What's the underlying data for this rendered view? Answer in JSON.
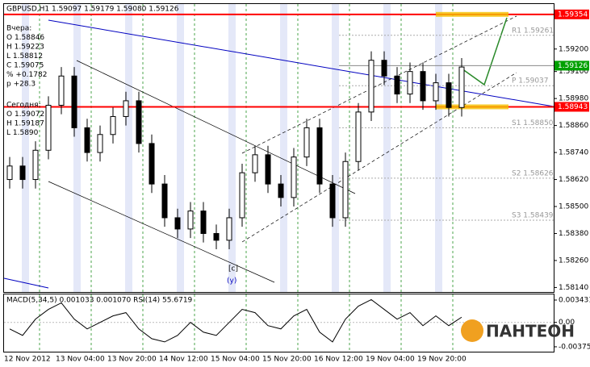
{
  "chart_data": [
    {
      "type": "candlestick",
      "title": "GBPUSD,H1  1.59097 1.59179 1.59080 1.59126",
      "ylim": [
        1.5812,
        1.594
      ],
      "yticks": [
        {
          "value": 1.592,
          "label": "1.59200"
        },
        {
          "value": 1.591,
          "label": "1.59100"
        },
        {
          "value": 1.5898,
          "label": "1.58980"
        },
        {
          "value": 1.5886,
          "label": "1.58860"
        },
        {
          "value": 1.5874,
          "label": "1.58740"
        },
        {
          "value": 1.5862,
          "label": "1.58620"
        },
        {
          "value": 1.585,
          "label": "1.58500"
        },
        {
          "value": 1.5838,
          "label": "1.58380"
        },
        {
          "value": 1.5826,
          "label": "1.58260"
        },
        {
          "value": 1.5814,
          "label": "1.58140"
        }
      ],
      "x_labels": [
        "12 Nov 2012",
        "13 Nov 04:00",
        "13 Nov 20:00",
        "14 Nov 12:00",
        "15 Nov 04:00",
        "15 Nov 20:00",
        "16 Nov 12:00",
        "19 Nov 04:00",
        "19 Nov 20:00"
      ],
      "up_color": "#ffffff",
      "down_color": "#000000",
      "open": [
        1.5862,
        1.5868,
        1.5862,
        1.5875,
        1.5895,
        1.5908,
        1.5885,
        1.5874,
        1.5882,
        1.589,
        1.5897,
        1.5878,
        1.586,
        1.5845,
        1.584,
        1.5848,
        1.5838,
        1.5835,
        1.5845,
        1.5865,
        1.5873,
        1.586,
        1.5854,
        1.5872,
        1.5885,
        1.586,
        1.5845,
        1.587,
        1.5892,
        1.5915,
        1.5908,
        1.59,
        1.591,
        1.5897,
        1.5905,
        1.5894
      ],
      "high": [
        1.5872,
        1.5872,
        1.5879,
        1.5899,
        1.5912,
        1.5912,
        1.5889,
        1.5886,
        1.5894,
        1.5901,
        1.5901,
        1.5882,
        1.5864,
        1.5849,
        1.5852,
        1.5852,
        1.5842,
        1.5849,
        1.5869,
        1.5877,
        1.5877,
        1.5864,
        1.5876,
        1.5889,
        1.5889,
        1.5864,
        1.5874,
        1.5896,
        1.5919,
        1.5919,
        1.5912,
        1.5914,
        1.5914,
        1.5909,
        1.5909,
        1.5916
      ],
      "low": [
        1.5858,
        1.5858,
        1.5858,
        1.5871,
        1.5891,
        1.5881,
        1.587,
        1.587,
        1.5878,
        1.5886,
        1.5874,
        1.5856,
        1.5841,
        1.5836,
        1.5836,
        1.5834,
        1.5831,
        1.5831,
        1.5841,
        1.5861,
        1.5856,
        1.585,
        1.585,
        1.5868,
        1.5856,
        1.5841,
        1.5841,
        1.5866,
        1.5888,
        1.5904,
        1.5896,
        1.5896,
        1.5893,
        1.5893,
        1.589,
        1.589
      ],
      "close": [
        1.5868,
        1.5862,
        1.5875,
        1.5895,
        1.5908,
        1.5885,
        1.5874,
        1.5882,
        1.589,
        1.5897,
        1.5878,
        1.586,
        1.5845,
        1.584,
        1.5848,
        1.5838,
        1.5835,
        1.5845,
        1.5865,
        1.5873,
        1.586,
        1.5854,
        1.5872,
        1.5885,
        1.586,
        1.5845,
        1.587,
        1.5892,
        1.5915,
        1.5908,
        1.59,
        1.591,
        1.5897,
        1.5905,
        1.5894,
        1.5912
      ],
      "levels": [
        {
          "value": 1.59354,
          "label": "1.59354",
          "color": "#ff0000"
        },
        {
          "value": 1.58943,
          "label": "1.58943",
          "color": "#ff0000"
        },
        {
          "value": 1.59126,
          "label": "1.59126",
          "color": "#00a000"
        }
      ],
      "pivots": [
        {
          "value": 1.59261,
          "label": "R1 1.59261"
        },
        {
          "value": 1.59037,
          "label": "P 1.59037"
        },
        {
          "value": 1.5885,
          "label": "S1 1.58850"
        },
        {
          "value": 1.58626,
          "label": "S2 1.58626"
        },
        {
          "value": 1.58439,
          "label": "S3 1.58439"
        }
      ],
      "yesterday": [
        "Вчера:",
        "O 1.58846",
        "H 1.59223",
        "L 1.58812",
        "C 1.59075",
        "% +0.1782",
        "p +28.3"
      ],
      "today": [
        "Сегодня:",
        "O 1.59072",
        "H 1.59187",
        "L 1.5890"
      ],
      "annotations": [
        "[c]",
        "(y)"
      ]
    },
    {
      "type": "line",
      "title": "MACD(5,34,5) 0.001033 0.001070 RSI(14) 55.6719",
      "color": "#000000",
      "ylim": [
        -0.0045,
        0.0043
      ],
      "yticks": [
        0.003431,
        {
          "value": 0,
          "label": "0.00"
        },
        -0.00375
      ],
      "values": [
        -0.001,
        -0.002,
        0.0005,
        0.002,
        0.003,
        0.0005,
        -0.001,
        0,
        0.001,
        0.0015,
        -0.001,
        -0.0025,
        -0.003,
        -0.002,
        0,
        -0.0015,
        -0.002,
        0,
        0.002,
        0.0015,
        -0.0005,
        -0.001,
        0.001,
        0.002,
        -0.0015,
        -0.003,
        0.0005,
        0.0025,
        0.0035,
        0.002,
        0.0005,
        0.0015,
        -0.0005,
        0.001,
        -0.0005,
        0.0008
      ]
    }
  ],
  "logo": "ПАНТЕОН"
}
